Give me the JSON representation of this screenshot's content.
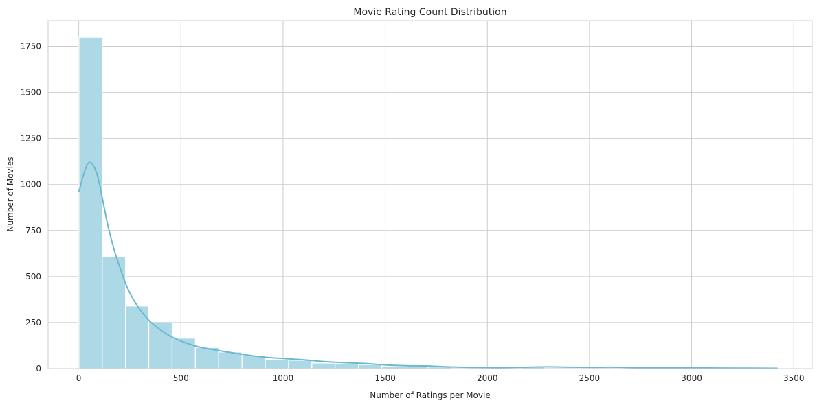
{
  "chart_data": {
    "type": "bar",
    "subtype": "histogram",
    "title": "Movie Rating Count Distribution",
    "xlabel": "Number of Ratings per Movie",
    "ylabel": "Number of Movies",
    "xlim": [
      -150,
      3590
    ],
    "ylim": [
      0,
      1890
    ],
    "xticks": [
      0,
      500,
      1000,
      1500,
      2000,
      2500,
      3000,
      3500
    ],
    "yticks": [
      0,
      250,
      500,
      750,
      1000,
      1250,
      1500,
      1750
    ],
    "grid": true,
    "bin_width": 114,
    "bins": [
      {
        "x0": 1,
        "x1": 115,
        "count": 1800
      },
      {
        "x0": 115,
        "x1": 229,
        "count": 610
      },
      {
        "x0": 229,
        "x1": 343,
        "count": 340
      },
      {
        "x0": 343,
        "x1": 457,
        "count": 255
      },
      {
        "x0": 457,
        "x1": 571,
        "count": 165
      },
      {
        "x0": 571,
        "x1": 685,
        "count": 115
      },
      {
        "x0": 685,
        "x1": 799,
        "count": 90
      },
      {
        "x0": 799,
        "x1": 913,
        "count": 70
      },
      {
        "x0": 913,
        "x1": 1027,
        "count": 50
      },
      {
        "x0": 1027,
        "x1": 1141,
        "count": 45
      },
      {
        "x0": 1141,
        "x1": 1255,
        "count": 30
      },
      {
        "x0": 1255,
        "x1": 1369,
        "count": 25
      },
      {
        "x0": 1369,
        "x1": 1483,
        "count": 22
      },
      {
        "x0": 1483,
        "x1": 1597,
        "count": 10
      },
      {
        "x0": 1597,
        "x1": 1711,
        "count": 12
      },
      {
        "x0": 1711,
        "x1": 1825,
        "count": 9
      },
      {
        "x0": 1825,
        "x1": 1939,
        "count": 3
      },
      {
        "x0": 1939,
        "x1": 2053,
        "count": 4
      },
      {
        "x0": 2053,
        "x1": 2167,
        "count": 5
      },
      {
        "x0": 2167,
        "x1": 2281,
        "count": 7
      },
      {
        "x0": 2281,
        "x1": 2395,
        "count": 3
      },
      {
        "x0": 2395,
        "x1": 2509,
        "count": 4
      },
      {
        "x0": 2509,
        "x1": 2623,
        "count": 5
      },
      {
        "x0": 2623,
        "x1": 2737,
        "count": 2
      },
      {
        "x0": 2737,
        "x1": 2851,
        "count": 2
      },
      {
        "x0": 2851,
        "x1": 2965,
        "count": 3
      },
      {
        "x0": 2965,
        "x1": 3079,
        "count": 2
      },
      {
        "x0": 3079,
        "x1": 3193,
        "count": 1
      },
      {
        "x0": 3193,
        "x1": 3307,
        "count": 1
      },
      {
        "x0": 3307,
        "x1": 3421,
        "count": 1
      }
    ],
    "kde": {
      "x": [
        1,
        20,
        40,
        55,
        70,
        85,
        100,
        120,
        140,
        160,
        180,
        200,
        230,
        260,
        300,
        350,
        400,
        450,
        500,
        550,
        600,
        700,
        800,
        900,
        1000,
        1100,
        1200,
        1300,
        1400,
        1500,
        1600,
        1700,
        1800,
        1900,
        2000,
        2100,
        2200,
        2300,
        2400,
        2500,
        2600,
        2700,
        2800,
        3000,
        3200,
        3421
      ],
      "y": [
        960,
        1040,
        1105,
        1120,
        1105,
        1070,
        1010,
        900,
        790,
        700,
        620,
        555,
        460,
        390,
        320,
        255,
        210,
        175,
        150,
        130,
        115,
        95,
        78,
        63,
        55,
        48,
        38,
        32,
        28,
        20,
        16,
        15,
        10,
        7,
        6,
        6,
        8,
        10,
        8,
        7,
        8,
        6,
        5,
        4,
        3,
        2
      ]
    },
    "colors": {
      "bar_fill": "#add8e6",
      "bar_edge": "#ffffff",
      "kde_line": "#6cb8cf",
      "grid": "#cccccc",
      "spine": "#cccccc",
      "text": "#262626"
    }
  }
}
